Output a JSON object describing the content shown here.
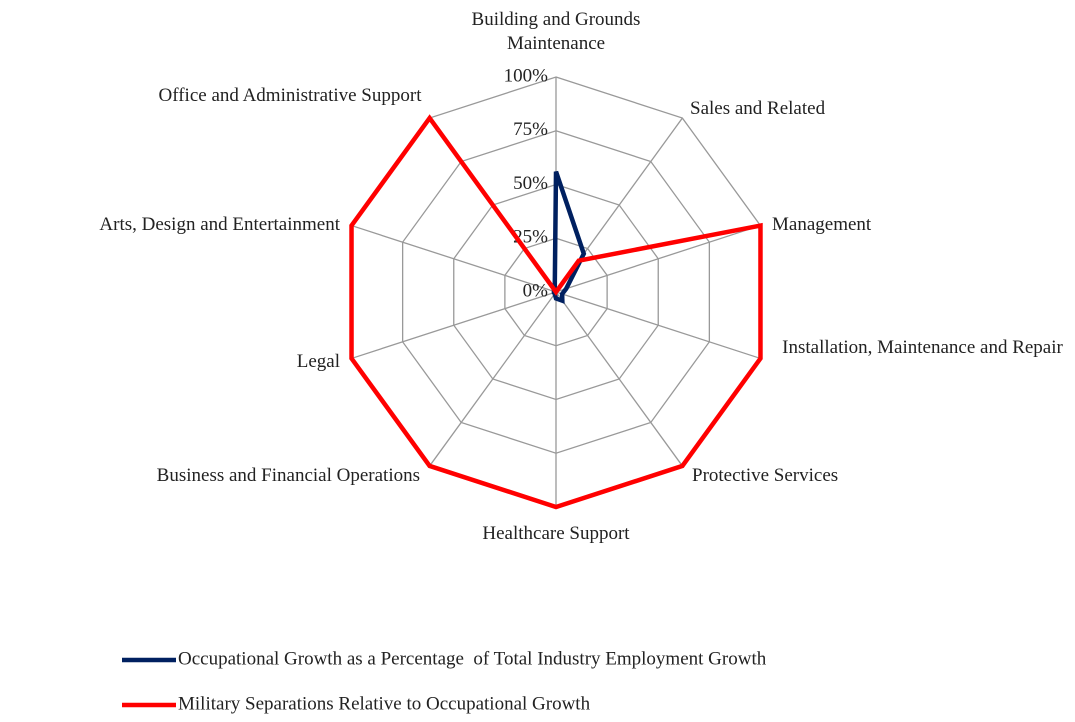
{
  "chart_data": {
    "type": "radar",
    "categories": [
      "Building and Grounds Maintenance",
      "Sales and Related",
      "Management",
      "Installation, Maintenance and Repair",
      "Protective Services",
      "Healthcare Support",
      "Business and Financial Operations",
      "Legal",
      "Arts, Design and Entertainment",
      "Office and Administrative Support"
    ],
    "series": [
      {
        "name": "Occupational Growth as a Percentage  of Total Industry Employment Growth",
        "color": "#002060",
        "values": [
          56,
          22,
          5,
          3,
          5,
          3,
          1,
          1,
          1,
          1
        ]
      },
      {
        "name": "Military Separations Relative to Occupational Growth",
        "color": "#ff0000",
        "values": [
          0,
          18,
          100,
          100,
          100,
          100,
          100,
          100,
          100,
          100
        ]
      }
    ],
    "ylim": [
      0,
      100
    ],
    "yticks": [
      {
        "value": 0,
        "label": "0%"
      },
      {
        "value": 25,
        "label": "25%"
      },
      {
        "value": 50,
        "label": "50%"
      },
      {
        "value": 75,
        "label": "75%"
      },
      {
        "value": 100,
        "label": "100%"
      }
    ],
    "grid": true
  }
}
